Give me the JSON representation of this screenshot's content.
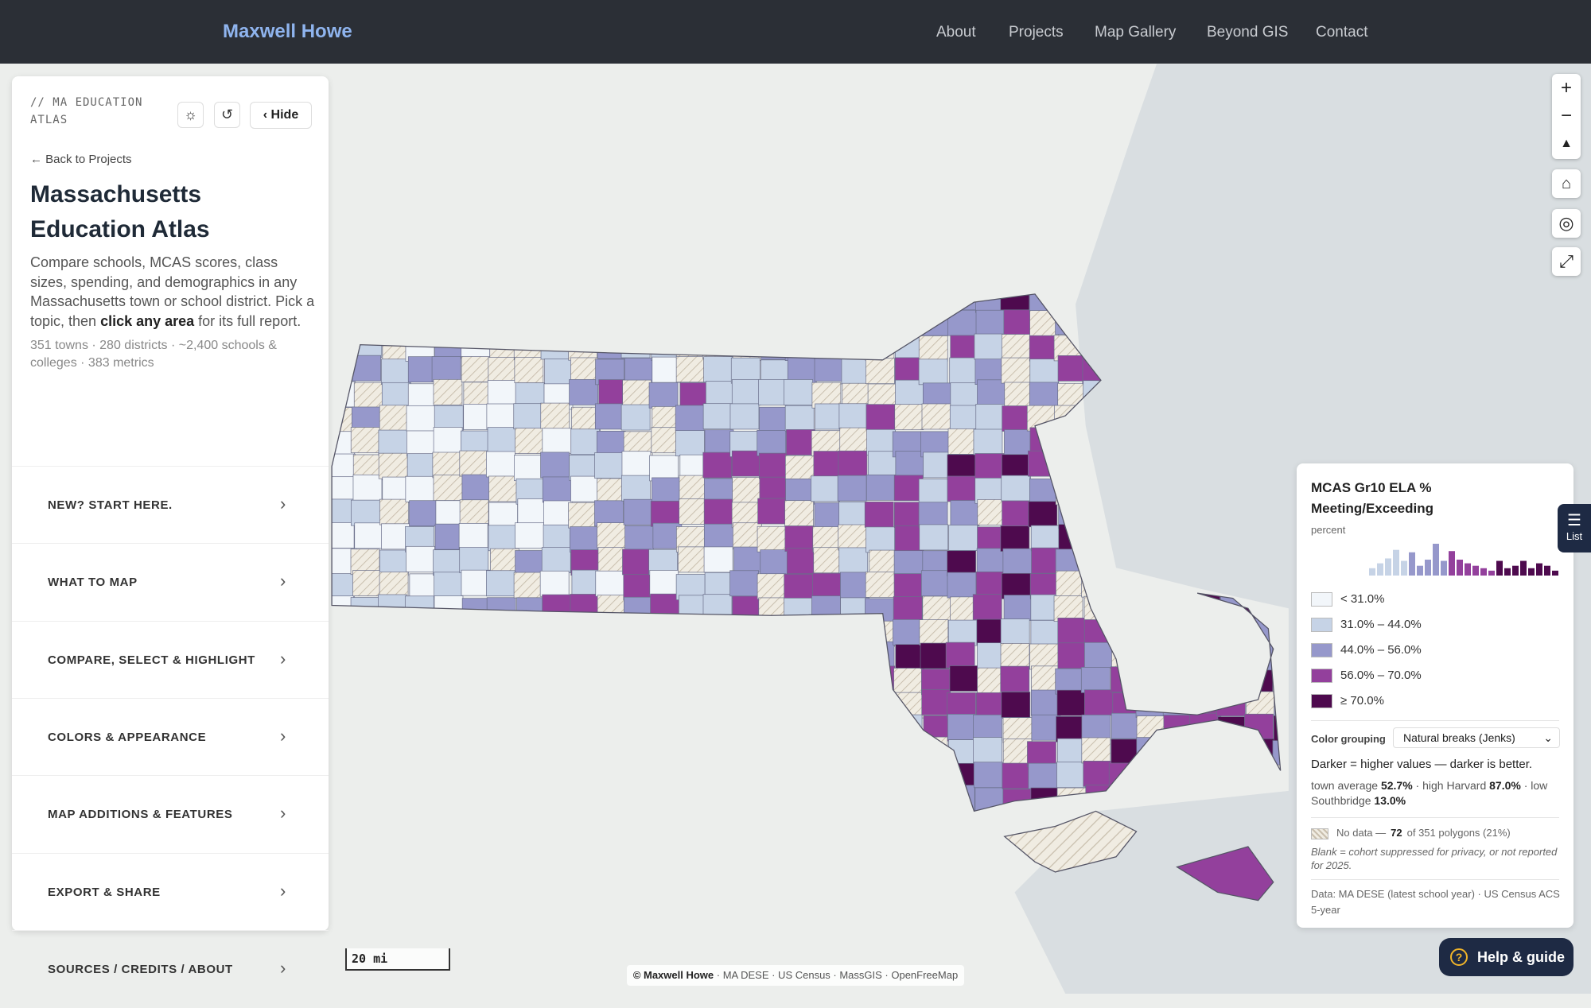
{
  "nav": {
    "brand": "Maxwell Howe",
    "links": [
      "About",
      "Projects",
      "Map Gallery",
      "Beyond GIS",
      "Contact"
    ]
  },
  "sidebar": {
    "kicker": "// MA EDUCATION ATLAS",
    "hide": "Hide",
    "back": "← Back to Projects",
    "title": "Massachusetts Education Atlas",
    "description": [
      "Compare schools, MCAS scores, class sizes, spending, and demographics in any Massachusetts town or school district. Pick a topic, then ",
      "click any area",
      " for its full report."
    ],
    "stats": "351 towns · 280 districts · ~2,400 schools & colleges · 383 metrics",
    "sections": [
      "NEW? START HERE.",
      "WHAT TO MAP",
      "COMPARE, SELECT & HIGHLIGHT",
      "COLORS & APPEARANCE",
      "MAP ADDITIONS & FEATURES",
      "EXPORT & SHARE",
      "SOURCES / CREDITS / ABOUT"
    ]
  },
  "legend": {
    "title": "MCAS Gr10 ELA % Meeting/Exceeding",
    "unit": "percent",
    "histogram": {
      "counts": [
        6,
        10,
        14,
        21,
        12,
        19,
        8,
        13,
        26,
        12,
        20,
        13,
        10,
        8,
        6,
        4,
        12,
        6,
        8,
        12,
        6,
        10,
        8,
        4
      ],
      "colors": [
        "#c6d3e6",
        "#c6d3e6",
        "#c6d3e6",
        "#c6d3e6",
        "#c6d3e6",
        "#9698cb",
        "#9698cb",
        "#9698cb",
        "#9698cb",
        "#9698cb",
        "#93409c",
        "#93409c",
        "#93409c",
        "#93409c",
        "#93409c",
        "#93409c",
        "#4e0a4e",
        "#4e0a4e",
        "#4e0a4e",
        "#4e0a4e",
        "#4e0a4e",
        "#4e0a4e",
        "#4e0a4e",
        "#4e0a4e"
      ]
    },
    "classes": [
      {
        "label": "< 31.0%",
        "color": "#f2f6fa"
      },
      {
        "label": "31.0% – 44.0%",
        "color": "#c6d3e6"
      },
      {
        "label": "44.0% – 56.0%",
        "color": "#9698cb"
      },
      {
        "label": "56.0% – 70.0%",
        "color": "#93409c"
      },
      {
        "label": "≥ 70.0%",
        "color": "#4e0a4e"
      }
    ],
    "grouping_label": "Color grouping",
    "grouping_value": "Natural breaks (Jenks)",
    "note": "Darker = higher values — darker is better.",
    "summary": [
      "town average",
      "52.7%",
      "· high Harvard",
      "87.0%",
      "· low Southbridge",
      "13.0%"
    ],
    "no_data": [
      "No data —",
      "72",
      "of 351 polygons (21%)"
    ],
    "blank_note": "Blank = cohort suppressed for privacy, or not reported for 2025.",
    "source": "Data: MA DESE (latest school year) · US Census ACS 5-year"
  },
  "map": {
    "scale": "20 mi",
    "attribution_brand": "© Maxwell Howe",
    "attribution_sources": "· MA DESE · US Census · MassGIS · OpenFreeMap"
  },
  "buttons": {
    "list": "List",
    "help": "Help & guide"
  }
}
